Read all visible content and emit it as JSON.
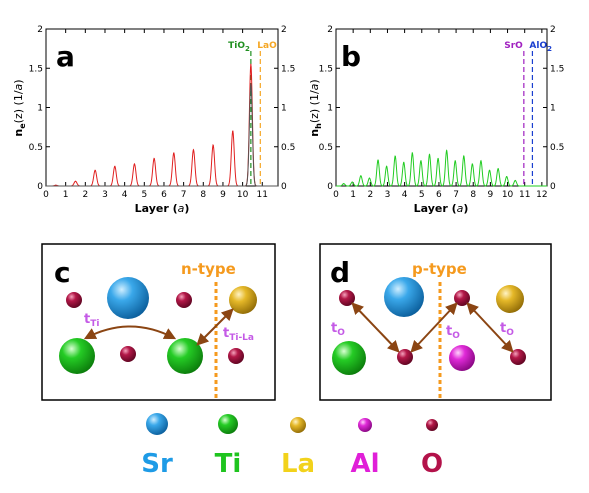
{
  "chart_data": [
    {
      "type": "line",
      "panel": "a",
      "ylabel_main": "n",
      "ylabel_sub": "e",
      "ylabel_rest": "(z) (1/",
      "ylabel_unit": "a",
      "ylabel_close": ")",
      "xlabel": "Layer (",
      "xlabel_unit": "a",
      "xlabel_close": ")",
      "xlim": [
        0,
        11.8
      ],
      "ylim": [
        0,
        2
      ],
      "xticks": [
        "0",
        "1",
        "2",
        "3",
        "4",
        "5",
        "6",
        "7",
        "8",
        "9",
        "10",
        "11"
      ],
      "yticks_left": [
        "0",
        "0.5",
        "1",
        "1.5",
        "2"
      ],
      "yticks_right": [
        "0",
        "0.5",
        "1",
        "1.5",
        "2"
      ],
      "interfaces": [
        {
          "label": "TiO",
          "sub": "2",
          "x": 10.42,
          "color": "#1f8f1f"
        },
        {
          "label": "LaO",
          "sub": "",
          "x": 10.9,
          "color": "#f5a623"
        }
      ],
      "series": [
        {
          "color": "#e02020",
          "peaks": [
            {
              "x": 0.5,
              "y": 0.01
            },
            {
              "x": 1.5,
              "y": 0.06
            },
            {
              "x": 2.5,
              "y": 0.2
            },
            {
              "x": 3.5,
              "y": 0.25
            },
            {
              "x": 4.5,
              "y": 0.28
            },
            {
              "x": 5.5,
              "y": 0.35
            },
            {
              "x": 6.5,
              "y": 0.42
            },
            {
              "x": 7.5,
              "y": 0.46
            },
            {
              "x": 8.5,
              "y": 0.52
            },
            {
              "x": 9.5,
              "y": 0.7
            },
            {
              "x": 10.42,
              "y": 1.55
            }
          ]
        },
        {
          "color": "#555555",
          "peaks": [
            {
              "x": 10.42,
              "y": 1.3
            }
          ]
        }
      ]
    },
    {
      "type": "line",
      "panel": "b",
      "ylabel_main": "n",
      "ylabel_sub": "h",
      "ylabel_rest": "(z) (1/",
      "ylabel_unit": "a",
      "ylabel_close": ")",
      "xlabel": "Layer (",
      "xlabel_unit": "a",
      "xlabel_close": ")",
      "xlim": [
        0,
        12.3
      ],
      "ylim": [
        0,
        2
      ],
      "xticks": [
        "0",
        "1",
        "2",
        "3",
        "4",
        "5",
        "6",
        "7",
        "8",
        "9",
        "10",
        "11",
        "12"
      ],
      "yticks_left": [
        "0",
        "0.5",
        "1",
        "1.5",
        "2"
      ],
      "yticks_right": [
        "0",
        "0.5",
        "1",
        "1.5",
        "2"
      ],
      "interfaces": [
        {
          "label": "SrO",
          "sub": "",
          "x": 10.95,
          "color": "#a020c0"
        },
        {
          "label": "AlO",
          "sub": "2",
          "x": 11.45,
          "color": "#1a3fd0"
        }
      ],
      "series": [
        {
          "color": "#22cc22",
          "peaks": [
            {
              "x": 0.45,
              "y": 0.03
            },
            {
              "x": 0.95,
              "y": 0.05
            },
            {
              "x": 1.45,
              "y": 0.13
            },
            {
              "x": 1.95,
              "y": 0.1
            },
            {
              "x": 2.45,
              "y": 0.33
            },
            {
              "x": 2.95,
              "y": 0.25
            },
            {
              "x": 3.45,
              "y": 0.38
            },
            {
              "x": 3.95,
              "y": 0.3
            },
            {
              "x": 4.45,
              "y": 0.42
            },
            {
              "x": 4.95,
              "y": 0.32
            },
            {
              "x": 5.45,
              "y": 0.4
            },
            {
              "x": 5.95,
              "y": 0.35
            },
            {
              "x": 6.45,
              "y": 0.45
            },
            {
              "x": 6.95,
              "y": 0.32
            },
            {
              "x": 7.45,
              "y": 0.38
            },
            {
              "x": 7.95,
              "y": 0.28
            },
            {
              "x": 8.45,
              "y": 0.32
            },
            {
              "x": 8.95,
              "y": 0.2
            },
            {
              "x": 9.45,
              "y": 0.22
            },
            {
              "x": 9.95,
              "y": 0.12
            },
            {
              "x": 10.45,
              "y": 0.07
            }
          ]
        }
      ]
    }
  ],
  "diagrams": {
    "c": {
      "letter": "c",
      "type_label": "n-type",
      "hop_labels": [
        {
          "main": "t",
          "sub": "Ti"
        },
        {
          "main": "t",
          "sub": "Ti-La"
        }
      ]
    },
    "d": {
      "letter": "d",
      "type_label": "p-type",
      "hop_labels": [
        {
          "main": "t",
          "sub": "O"
        },
        {
          "main": "t",
          "sub": "O"
        },
        {
          "main": "t",
          "sub": "O"
        }
      ]
    }
  },
  "legend": [
    {
      "label": "Sr",
      "color": "#1e9be6"
    },
    {
      "label": "Ti",
      "color": "#1fc41f"
    },
    {
      "label": "La",
      "color": "#f2d21b"
    },
    {
      "label": "Al",
      "color": "#e01fd8"
    },
    {
      "label": "O",
      "color": "#b3124a"
    }
  ],
  "atom_colors": {
    "Sr": "#1e9be6",
    "Ti": "#1fc41f",
    "La": "#e0b020",
    "Al": "#e01fd8",
    "O": "#b3124a"
  }
}
